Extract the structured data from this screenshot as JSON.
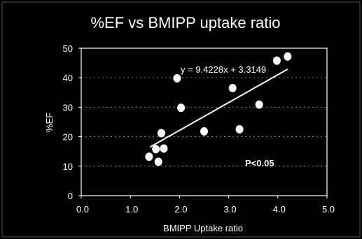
{
  "colors": {
    "background": "#000000",
    "foreground": "#ffffff",
    "grid": "#8a8a8a"
  },
  "chart_data": {
    "type": "scatter",
    "title": "%EF vs BMIPP uptake ratio",
    "xlabel": "BMIPP Uptake ratio",
    "ylabel": "%EF",
    "xlim": [
      0,
      5
    ],
    "ylim": [
      0,
      50
    ],
    "x_ticks": [
      "0.0",
      "1.0",
      "2.0",
      "3.0",
      "4.0",
      "5.0"
    ],
    "y_ticks": [
      "0",
      "10",
      "20",
      "30",
      "40",
      "50"
    ],
    "x_tick_values": [
      0,
      1,
      2,
      3,
      4,
      5
    ],
    "y_tick_values": [
      0,
      10,
      20,
      30,
      40,
      50
    ],
    "grid": "horizontal dashed",
    "series": [
      {
        "points": [
          {
            "x": 1.38,
            "y": 13.2
          },
          {
            "x": 1.52,
            "y": 15.8
          },
          {
            "x": 1.57,
            "y": 11.5
          },
          {
            "x": 1.63,
            "y": 21.2
          },
          {
            "x": 1.68,
            "y": 16.0
          },
          {
            "x": 1.95,
            "y": 39.8
          },
          {
            "x": 2.03,
            "y": 29.8
          },
          {
            "x": 2.5,
            "y": 21.8
          },
          {
            "x": 3.08,
            "y": 36.5
          },
          {
            "x": 3.22,
            "y": 22.5
          },
          {
            "x": 3.62,
            "y": 30.9
          },
          {
            "x": 3.98,
            "y": 45.8
          },
          {
            "x": 4.2,
            "y": 47.2
          }
        ]
      }
    ],
    "trendline": {
      "slope": 9.4228,
      "intercept": 3.3149,
      "x_range": [
        1.4,
        4.2
      ],
      "equation_label": "y = 9.4228x + 3.3149"
    },
    "annotations": {
      "p_value": "P<0.05"
    }
  }
}
